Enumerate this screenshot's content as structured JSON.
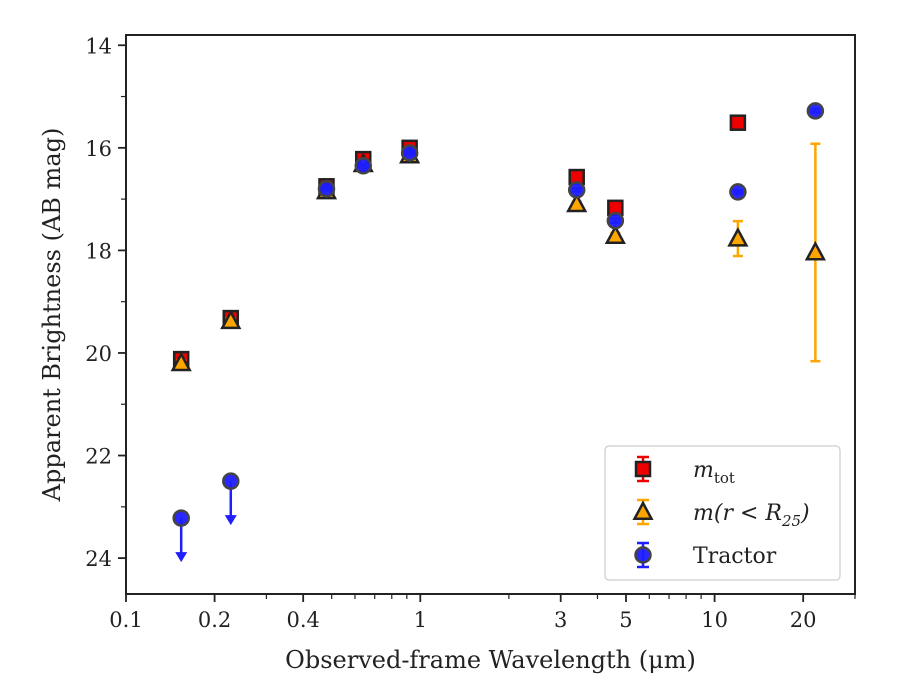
{
  "chart_data": {
    "type": "scatter",
    "xlabel": "Observed-frame Wavelength (μm)",
    "ylabel": "Apparent Brightness (AB mag)",
    "xscale": "log",
    "xlim": [
      0.1,
      30
    ],
    "ylim": [
      24.7,
      13.8
    ],
    "y_inverted": true,
    "grid": false,
    "legend_position": "lower right",
    "x_ticks": [
      {
        "value": 0.1,
        "label": "0.1"
      },
      {
        "value": 0.2,
        "label": "0.2"
      },
      {
        "value": 0.4,
        "label": "0.4"
      },
      {
        "value": 1,
        "label": "1"
      },
      {
        "value": 3,
        "label": "3"
      },
      {
        "value": 5,
        "label": "5"
      },
      {
        "value": 10,
        "label": "10"
      },
      {
        "value": 20,
        "label": "20"
      }
    ],
    "x_minor_ticks": [
      0.3,
      0.5,
      0.6,
      0.7,
      0.8,
      0.9,
      2,
      4,
      6,
      7,
      8,
      9,
      30
    ],
    "y_ticks": [
      {
        "value": 14,
        "label": "14"
      },
      {
        "value": 16,
        "label": "16"
      },
      {
        "value": 18,
        "label": "18"
      },
      {
        "value": 20,
        "label": "20"
      },
      {
        "value": 22,
        "label": "22"
      },
      {
        "value": 24,
        "label": "24"
      }
    ],
    "y_minor_ticks": [
      15,
      17,
      19,
      21,
      23
    ],
    "series": [
      {
        "name": "m_tot",
        "legend_main": "m",
        "legend_sub": "tot",
        "marker": "square",
        "color": "#ee0000",
        "edge_color": "#222222",
        "points": [
          {
            "x": 0.154,
            "y": 20.12,
            "err": 0.06
          },
          {
            "x": 0.227,
            "y": 19.32,
            "err": 0.05
          },
          {
            "x": 0.48,
            "y": 16.75,
            "err": 0.05
          },
          {
            "x": 0.64,
            "y": 16.22,
            "err": 0.05
          },
          {
            "x": 0.92,
            "y": 16.0,
            "err": 0.05
          },
          {
            "x": 3.4,
            "y": 16.57,
            "err": 0.03
          },
          {
            "x": 4.6,
            "y": 17.17,
            "err": 0.03
          },
          {
            "x": 12.0,
            "y": 15.51,
            "err": 0.03
          },
          {
            "x": 22.0,
            "y": null,
            "err": 0
          }
        ]
      },
      {
        "name": "m(r < R25)",
        "legend_main": "m(r < R",
        "legend_sub": "25",
        "legend_tail": ")",
        "marker": "triangle",
        "color": "#ffa500",
        "edge_color": "#222222",
        "points": [
          {
            "x": 0.154,
            "y": 20.2,
            "err": 0.05
          },
          {
            "x": 0.227,
            "y": 19.38,
            "err": 0.05
          },
          {
            "x": 0.48,
            "y": 16.85,
            "err": 0.04
          },
          {
            "x": 0.64,
            "y": 16.32,
            "err": 0.04
          },
          {
            "x": 0.92,
            "y": 16.15,
            "err": 0.04
          },
          {
            "x": 3.4,
            "y": 17.1,
            "err": 0.05
          },
          {
            "x": 4.6,
            "y": 17.72,
            "err": 0.06
          },
          {
            "x": 12.0,
            "y": 17.77,
            "err": 0.34
          },
          {
            "x": 22.0,
            "y": 18.04,
            "err": 2.12
          }
        ]
      },
      {
        "name": "Tractor",
        "legend_main": "Tractor",
        "marker": "circle",
        "color": "#1e1eff",
        "edge_color": "#444444",
        "points": [
          {
            "x": 0.154,
            "y": 23.22,
            "err": 0,
            "upper_limit": true
          },
          {
            "x": 0.227,
            "y": 22.5,
            "err": 0,
            "upper_limit": true
          },
          {
            "x": 0.48,
            "y": 16.8,
            "err": 0.03
          },
          {
            "x": 0.64,
            "y": 16.35,
            "err": 0.03
          },
          {
            "x": 0.92,
            "y": 16.1,
            "err": 0.03
          },
          {
            "x": 3.4,
            "y": 16.82,
            "err": 0.03
          },
          {
            "x": 4.6,
            "y": 17.42,
            "err": 0.04
          },
          {
            "x": 12.0,
            "y": 16.86,
            "err": 0.03
          },
          {
            "x": 22.0,
            "y": 15.28,
            "err": 0.03
          }
        ]
      }
    ]
  }
}
